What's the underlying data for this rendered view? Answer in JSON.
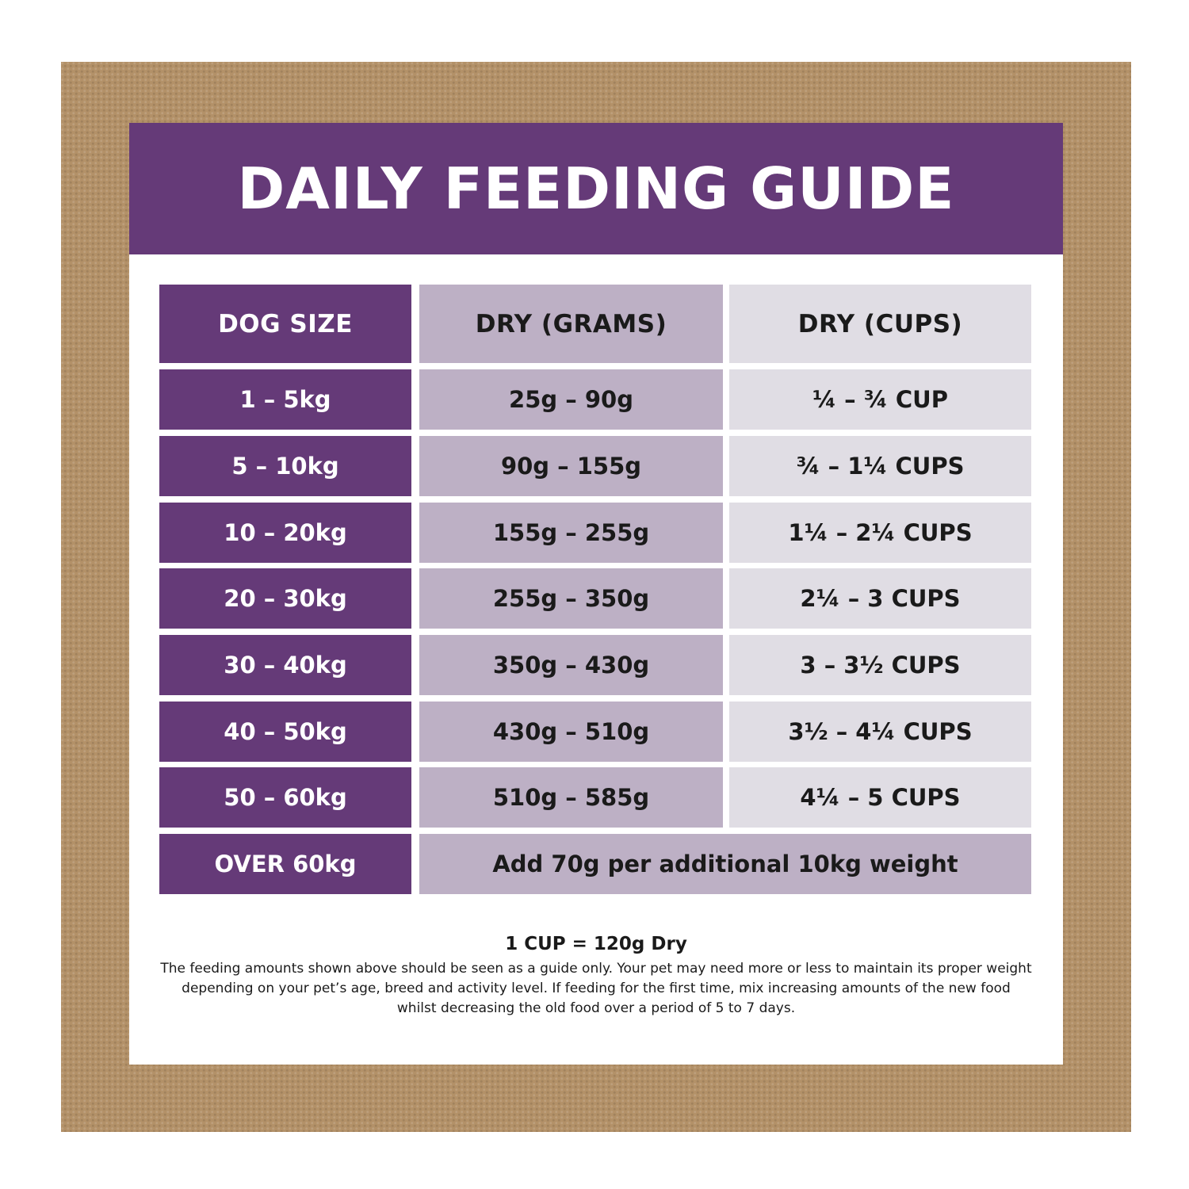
{
  "title": "DAILY FEEDING GUIDE",
  "headers": [
    "DOG SIZE",
    "DRY (GRAMS)",
    "DRY (CUPS)"
  ],
  "rows": [
    {
      "size": "1 – 5kg",
      "grams": "25g – 90g",
      "cups": "¼ – ¾ CUP"
    },
    {
      "size": "5 – 10kg",
      "grams": "90g – 155g",
      "cups": "¾ – 1¼ CUPS"
    },
    {
      "size": "10 – 20kg",
      "grams": "155g – 255g",
      "cups": "1¼ – 2¼ CUPS"
    },
    {
      "size": "20 – 30kg",
      "grams": "255g – 350g",
      "cups": "2¼ – 3 CUPS"
    },
    {
      "size": "30 – 40kg",
      "grams": "350g – 430g",
      "cups": "3 – 3½ CUPS"
    },
    {
      "size": "40 – 50kg",
      "grams": "430g – 510g",
      "cups": "3½ – 4¼ CUPS"
    },
    {
      "size": "50 – 60kg",
      "grams": "510g – 585g",
      "cups": "4¼ – 5 CUPS"
    }
  ],
  "last_row": {
    "size": "OVER 60kg",
    "note": "Add 70g per additional 10kg weight"
  },
  "conversion": "1 CUP = 120g Dry",
  "disclaimer": "The feeding amounts shown above should be seen as a guide only. Your pet may need more or less to maintain its proper weight depending on your pet’s age, breed and activity level. If feeding for the first time, mix increasing amounts of the new food whilst decreasing the old food over a period of 5 to 7 days.",
  "colors": {
    "frame": "#b39168",
    "banner": "#653a78",
    "grams_column": "#bdb0c5",
    "cups_column": "#e0dde4"
  }
}
